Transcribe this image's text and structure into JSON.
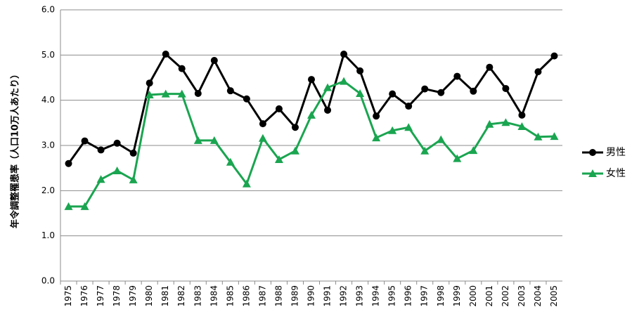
{
  "chart_data": {
    "type": "line",
    "y_label": "年令調整罹患率（人口10万人あたり）",
    "categories": [
      "1975",
      "1976",
      "1977",
      "1978",
      "1979",
      "1980",
      "1981",
      "1982",
      "1983",
      "1984",
      "1985",
      "1986",
      "1987",
      "1988",
      "1989",
      "1990",
      "1991",
      "1992",
      "1993",
      "1994",
      "1995",
      "1996",
      "1997",
      "1998",
      "1999",
      "2000",
      "2001",
      "2002",
      "2003",
      "2004",
      "2005"
    ],
    "series": [
      {
        "name": "男性",
        "color": "#000000",
        "marker": "circle",
        "values": [
          2.6,
          3.1,
          2.9,
          3.05,
          2.83,
          4.38,
          5.02,
          4.7,
          4.15,
          4.88,
          4.21,
          4.03,
          3.48,
          3.81,
          3.4,
          4.46,
          3.78,
          5.02,
          4.65,
          3.65,
          4.14,
          3.87,
          4.25,
          4.17,
          4.53,
          4.2,
          4.73,
          4.26,
          3.67,
          4.63,
          4.98
        ]
      },
      {
        "name": "女性",
        "color": "#1aa550",
        "marker": "triangle",
        "values": [
          1.65,
          1.65,
          2.25,
          2.44,
          2.24,
          4.12,
          4.14,
          4.14,
          3.11,
          3.11,
          2.63,
          2.15,
          3.16,
          2.69,
          2.88,
          3.67,
          4.28,
          4.42,
          4.15,
          3.17,
          3.33,
          3.4,
          2.88,
          3.13,
          2.71,
          2.89,
          3.47,
          3.51,
          3.42,
          3.19,
          3.2
        ]
      }
    ],
    "ylim": [
      0,
      6
    ],
    "yticks": [
      {
        "value": 0,
        "label": "0.0"
      },
      {
        "value": 1,
        "label": "1.0"
      },
      {
        "value": 2,
        "label": "2.0"
      },
      {
        "value": 3,
        "label": "3.0"
      },
      {
        "value": 4,
        "label": "4.0"
      },
      {
        "value": 5,
        "label": "5.0"
      },
      {
        "value": 6,
        "label": "6.0"
      }
    ],
    "grid": true,
    "legend": "right"
  }
}
